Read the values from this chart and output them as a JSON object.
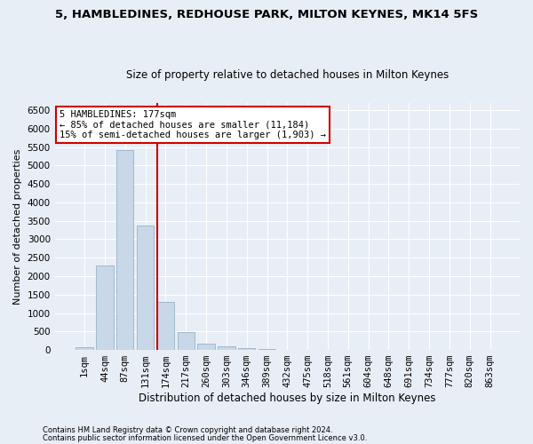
{
  "title": "5, HAMBLEDINES, REDHOUSE PARK, MILTON KEYNES, MK14 5FS",
  "subtitle": "Size of property relative to detached houses in Milton Keynes",
  "xlabel": "Distribution of detached houses by size in Milton Keynes",
  "ylabel": "Number of detached properties",
  "footer_line1": "Contains HM Land Registry data © Crown copyright and database right 2024.",
  "footer_line2": "Contains public sector information licensed under the Open Government Licence v3.0.",
  "bar_labels": [
    "1sqm",
    "44sqm",
    "87sqm",
    "131sqm",
    "174sqm",
    "217sqm",
    "260sqm",
    "303sqm",
    "346sqm",
    "389sqm",
    "432sqm",
    "475sqm",
    "518sqm",
    "561sqm",
    "604sqm",
    "648sqm",
    "691sqm",
    "734sqm",
    "777sqm",
    "820sqm",
    "863sqm"
  ],
  "bar_values": [
    75,
    2280,
    5430,
    3380,
    1290,
    480,
    165,
    90,
    55,
    30,
    10,
    5,
    0,
    0,
    0,
    0,
    0,
    0,
    0,
    0,
    0
  ],
  "bar_color": "#c8d8e8",
  "bar_edgecolor": "#a0b8cc",
  "vline_color": "#cc0000",
  "vline_index": 3.575,
  "ylim": [
    0,
    6700
  ],
  "yticks": [
    0,
    500,
    1000,
    1500,
    2000,
    2500,
    3000,
    3500,
    4000,
    4500,
    5000,
    5500,
    6000,
    6500
  ],
  "annotation_line1": "5 HAMBLEDINES: 177sqm",
  "annotation_line2": "← 85% of detached houses are smaller (11,184)",
  "annotation_line3": "15% of semi-detached houses are larger (1,903) →",
  "annotation_box_color": "#cc0000",
  "background_color": "#e8eef5",
  "grid_color": "#ffffff",
  "title_fontsize": 9.5,
  "subtitle_fontsize": 8.5,
  "ylabel_fontsize": 8,
  "xlabel_fontsize": 8.5,
  "tick_fontsize": 7.5,
  "annot_fontsize": 7.5,
  "footer_fontsize": 6
}
